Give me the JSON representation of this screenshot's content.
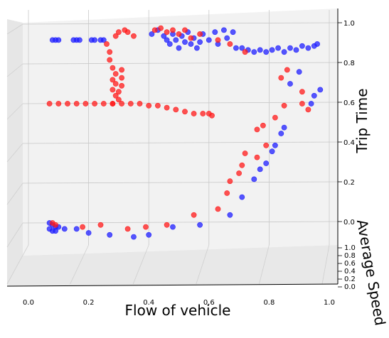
{
  "chart_data": {
    "type": "scatter",
    "projection": "3d",
    "xlabel": "Flow of vehicle",
    "ylabel": "Average Speed",
    "zlabel": "Trip Time",
    "xlim": [
      0.0,
      1.0
    ],
    "ylim": [
      0.0,
      1.0
    ],
    "zlim": [
      0.0,
      1.0
    ],
    "x_ticks": [
      "0.0",
      "0.2",
      "0.4",
      "0.6",
      "0.8",
      "1.0"
    ],
    "y_ticks": [
      "0.0",
      "0.2",
      "0.4",
      "0.6",
      "0.8",
      "1.0"
    ],
    "z_ticks": [
      "0.0",
      "0.2",
      "0.4",
      "0.6",
      "0.8",
      "1.0"
    ],
    "grid": true,
    "series": [
      {
        "color": "#1f1fff",
        "points": [
          [
            0.08,
            0.92
          ],
          [
            0.09,
            0.92
          ],
          [
            0.1,
            0.92
          ],
          [
            0.15,
            0.92
          ],
          [
            0.16,
            0.92
          ],
          [
            0.17,
            0.92
          ],
          [
            0.21,
            0.92
          ],
          [
            0.22,
            0.92
          ],
          [
            0.24,
            0.92
          ],
          [
            0.25,
            0.92
          ],
          [
            0.41,
            0.95
          ],
          [
            0.43,
            0.97
          ],
          [
            0.45,
            0.94
          ],
          [
            0.46,
            0.92
          ],
          [
            0.47,
            0.9
          ],
          [
            0.48,
            0.95
          ],
          [
            0.49,
            0.92
          ],
          [
            0.5,
            0.88
          ],
          [
            0.51,
            0.94
          ],
          [
            0.52,
            0.91
          ],
          [
            0.53,
            0.96
          ],
          [
            0.54,
            0.9
          ],
          [
            0.55,
            0.93
          ],
          [
            0.56,
            0.88
          ],
          [
            0.57,
            0.91
          ],
          [
            0.58,
            0.95
          ],
          [
            0.6,
            0.92
          ],
          [
            0.62,
            0.96
          ],
          [
            0.63,
            0.9
          ],
          [
            0.65,
            0.97
          ],
          [
            0.66,
            0.93
          ],
          [
            0.68,
            0.96
          ],
          [
            0.69,
            0.88
          ],
          [
            0.71,
            0.88
          ],
          [
            0.73,
            0.87
          ],
          [
            0.75,
            0.86
          ],
          [
            0.77,
            0.87
          ],
          [
            0.79,
            0.86
          ],
          [
            0.81,
            0.87
          ],
          [
            0.83,
            0.88
          ],
          [
            0.85,
            0.86
          ],
          [
            0.87,
            0.88
          ],
          [
            0.89,
            0.87
          ],
          [
            0.91,
            0.89
          ],
          [
            0.93,
            0.88
          ],
          [
            0.95,
            0.89
          ],
          [
            0.96,
            0.9
          ],
          [
            0.87,
            0.7
          ],
          [
            0.9,
            0.76
          ],
          [
            0.94,
            0.6
          ],
          [
            0.95,
            0.64
          ],
          [
            0.97,
            0.67
          ],
          [
            0.84,
            0.45
          ],
          [
            0.85,
            0.48
          ],
          [
            0.82,
            0.39
          ],
          [
            0.81,
            0.36
          ],
          [
            0.79,
            0.3
          ],
          [
            0.77,
            0.27
          ],
          [
            0.75,
            0.22
          ],
          [
            0.71,
            0.13
          ],
          [
            0.67,
            0.04
          ],
          [
            0.57,
            -0.01
          ],
          [
            0.48,
            -0.02
          ],
          [
            0.4,
            -0.06
          ],
          [
            0.35,
            -0.07
          ],
          [
            0.27,
            -0.06
          ],
          [
            0.2,
            -0.05
          ],
          [
            0.16,
            -0.03
          ],
          [
            0.12,
            -0.03
          ],
          [
            0.1,
            -0.02
          ],
          [
            0.07,
            0.0
          ],
          [
            0.08,
            -0.01
          ],
          [
            0.09,
            -0.02
          ],
          [
            0.07,
            -0.03
          ],
          [
            0.08,
            -0.04
          ],
          [
            0.09,
            -0.04
          ]
        ]
      },
      {
        "color": "#ff1a1a",
        "points": [
          [
            0.29,
            0.94
          ],
          [
            0.3,
            0.96
          ],
          [
            0.32,
            0.97
          ],
          [
            0.33,
            0.96
          ],
          [
            0.35,
            0.94
          ],
          [
            0.26,
            0.9
          ],
          [
            0.27,
            0.86
          ],
          [
            0.27,
            0.82
          ],
          [
            0.28,
            0.78
          ],
          [
            0.29,
            0.75
          ],
          [
            0.28,
            0.72
          ],
          [
            0.29,
            0.7
          ],
          [
            0.28,
            0.67
          ],
          [
            0.29,
            0.64
          ],
          [
            0.3,
            0.62
          ],
          [
            0.28,
            0.6
          ],
          [
            0.31,
            0.77
          ],
          [
            0.31,
            0.73
          ],
          [
            0.31,
            0.69
          ],
          [
            0.3,
            0.66
          ],
          [
            0.42,
            0.97
          ],
          [
            0.44,
            0.98
          ],
          [
            0.46,
            0.96
          ],
          [
            0.48,
            0.97
          ],
          [
            0.5,
            0.95
          ],
          [
            0.52,
            0.97
          ],
          [
            0.54,
            0.93
          ],
          [
            0.57,
            0.95
          ],
          [
            0.63,
            0.92
          ],
          [
            0.67,
            0.9
          ],
          [
            0.72,
            0.86
          ],
          [
            0.86,
            0.77
          ],
          [
            0.84,
            0.73
          ],
          [
            0.91,
            0.66
          ],
          [
            0.91,
            0.6
          ],
          [
            0.93,
            0.57
          ],
          [
            0.85,
            0.59
          ],
          [
            0.82,
            0.53
          ],
          [
            0.78,
            0.49
          ],
          [
            0.76,
            0.47
          ],
          [
            0.79,
            0.39
          ],
          [
            0.72,
            0.35
          ],
          [
            0.76,
            0.33
          ],
          [
            0.71,
            0.29
          ],
          [
            0.7,
            0.25
          ],
          [
            0.67,
            0.21
          ],
          [
            0.66,
            0.15
          ],
          [
            0.63,
            0.07
          ],
          [
            0.55,
            0.04
          ],
          [
            0.46,
            -0.01
          ],
          [
            0.39,
            -0.02
          ],
          [
            0.33,
            -0.03
          ],
          [
            0.24,
            -0.01
          ],
          [
            0.18,
            -0.02
          ],
          [
            0.07,
            0.6
          ],
          [
            0.1,
            0.6
          ],
          [
            0.13,
            0.6
          ],
          [
            0.16,
            0.6
          ],
          [
            0.19,
            0.6
          ],
          [
            0.22,
            0.6
          ],
          [
            0.25,
            0.6
          ],
          [
            0.28,
            0.6
          ],
          [
            0.31,
            0.6
          ],
          [
            0.34,
            0.6
          ],
          [
            0.37,
            0.6
          ],
          [
            0.4,
            0.59
          ],
          [
            0.43,
            0.59
          ],
          [
            0.46,
            0.58
          ],
          [
            0.49,
            0.57
          ],
          [
            0.52,
            0.56
          ],
          [
            0.55,
            0.55
          ],
          [
            0.58,
            0.55
          ],
          [
            0.6,
            0.55
          ],
          [
            0.61,
            0.54
          ],
          [
            0.08,
            0.0
          ],
          [
            0.09,
            -0.01
          ]
        ]
      }
    ]
  }
}
